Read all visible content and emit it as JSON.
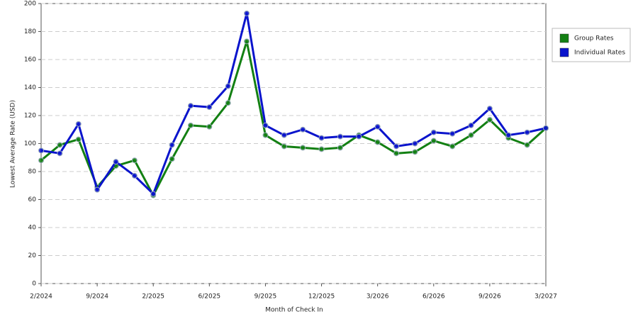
{
  "chart_data": {
    "type": "line",
    "x_label": "Month of Check In",
    "y_label": "Lowest Average Rate (USD)",
    "categories": [
      "2/2024",
      null,
      null,
      "9/2024",
      null,
      null,
      "2/2025",
      null,
      null,
      "6/2025",
      null,
      null,
      "9/2025",
      null,
      null,
      "12/2025",
      null,
      null,
      "3/2026",
      null,
      null,
      "6/2026",
      null,
      null,
      "9/2026",
      null,
      null,
      "3/2027"
    ],
    "series": [
      {
        "name": "Group Rates",
        "color": "#138013",
        "values": [
          88,
          99,
          103,
          69,
          84,
          88,
          63,
          89,
          113,
          112,
          129,
          173,
          106,
          98,
          97,
          96,
          97,
          106,
          101,
          93,
          94,
          102,
          98,
          106,
          117,
          104,
          99,
          111
        ]
      },
      {
        "name": "Individual Rates",
        "color": "#0a14cc",
        "values": [
          95,
          93,
          114,
          67,
          87,
          77,
          64,
          99,
          127,
          126,
          141,
          193,
          113,
          106,
          110,
          104,
          105,
          105,
          112,
          98,
          100,
          108,
          107,
          113,
          125,
          106,
          108,
          111
        ]
      }
    ],
    "ylim": [
      0,
      200
    ],
    "yticks": [
      0,
      20,
      40,
      60,
      80,
      100,
      120,
      140,
      160,
      180,
      200
    ],
    "grid": true,
    "legend": "right"
  }
}
